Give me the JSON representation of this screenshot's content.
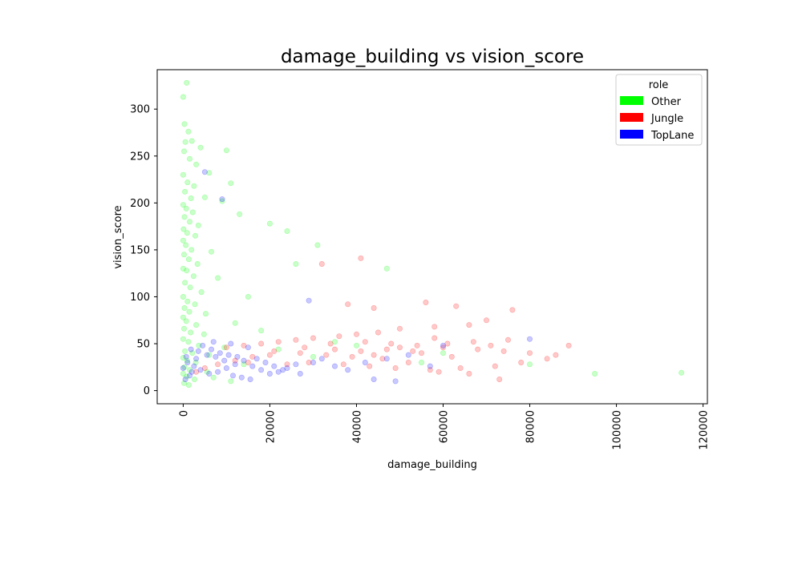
{
  "chart_data": {
    "type": "scatter",
    "title": "damage_building vs vision_score",
    "xlabel": "damage_building",
    "ylabel": "vision_score",
    "xlim": [
      -6000,
      121000
    ],
    "ylim": [
      -14,
      342
    ],
    "x_ticks": [
      0,
      20000,
      40000,
      60000,
      80000,
      100000,
      120000
    ],
    "x_tick_labels": [
      "0",
      "20000",
      "40000",
      "60000",
      "80000",
      "100000",
      "120000"
    ],
    "y_ticks": [
      0,
      50,
      100,
      150,
      200,
      250,
      300
    ],
    "y_tick_labels": [
      "0",
      "50",
      "100",
      "150",
      "200",
      "250",
      "300"
    ],
    "x_tick_rotation": 90,
    "grid": false,
    "legend": {
      "title": "role",
      "placement": "top-right",
      "entries": [
        {
          "label": "Other",
          "color": "#00ff00"
        },
        {
          "label": "Jungle",
          "color": "#ff0000"
        },
        {
          "label": "TopLane",
          "color": "#0000ff"
        }
      ]
    },
    "point_alpha": 0.07,
    "series": [
      {
        "name": "Other",
        "color": "#00ff00",
        "points": [
          [
            0,
            313
          ],
          [
            800,
            328
          ],
          [
            300,
            284
          ],
          [
            1200,
            276
          ],
          [
            500,
            265
          ],
          [
            2000,
            266
          ],
          [
            4000,
            259
          ],
          [
            10000,
            256
          ],
          [
            200,
            255
          ],
          [
            1500,
            247
          ],
          [
            3000,
            241
          ],
          [
            6000,
            232
          ],
          [
            0,
            230
          ],
          [
            1000,
            222
          ],
          [
            2500,
            218
          ],
          [
            11000,
            221
          ],
          [
            400,
            212
          ],
          [
            1800,
            205
          ],
          [
            5000,
            206
          ],
          [
            9000,
            202
          ],
          [
            0,
            198
          ],
          [
            700,
            194
          ],
          [
            2200,
            190
          ],
          [
            13000,
            188
          ],
          [
            300,
            185
          ],
          [
            1500,
            180
          ],
          [
            3500,
            176
          ],
          [
            20000,
            178
          ],
          [
            100,
            172
          ],
          [
            900,
            168
          ],
          [
            2800,
            165
          ],
          [
            24000,
            170
          ],
          [
            0,
            160
          ],
          [
            600,
            155
          ],
          [
            1900,
            150
          ],
          [
            6500,
            148
          ],
          [
            200,
            145
          ],
          [
            1300,
            140
          ],
          [
            3300,
            135
          ],
          [
            31000,
            155
          ],
          [
            0,
            130
          ],
          [
            800,
            128
          ],
          [
            2400,
            122
          ],
          [
            8000,
            120
          ],
          [
            400,
            115
          ],
          [
            1600,
            110
          ],
          [
            4200,
            105
          ],
          [
            26000,
            135
          ],
          [
            0,
            100
          ],
          [
            1000,
            95
          ],
          [
            2700,
            92
          ],
          [
            15000,
            100
          ],
          [
            300,
            88
          ],
          [
            1400,
            84
          ],
          [
            5200,
            82
          ],
          [
            47000,
            130
          ],
          [
            0,
            78
          ],
          [
            700,
            74
          ],
          [
            3000,
            70
          ],
          [
            12000,
            72
          ],
          [
            200,
            66
          ],
          [
            1700,
            62
          ],
          [
            4800,
            60
          ],
          [
            18000,
            64
          ],
          [
            0,
            55
          ],
          [
            1200,
            52
          ],
          [
            3600,
            48
          ],
          [
            9500,
            46
          ],
          [
            400,
            42
          ],
          [
            2100,
            40
          ],
          [
            6000,
            38
          ],
          [
            22000,
            44
          ],
          [
            0,
            35
          ],
          [
            900,
            32
          ],
          [
            2900,
            30
          ],
          [
            14000,
            28
          ],
          [
            300,
            25
          ],
          [
            1500,
            22
          ],
          [
            5500,
            20
          ],
          [
            30000,
            36
          ],
          [
            0,
            18
          ],
          [
            800,
            15
          ],
          [
            2600,
            12
          ],
          [
            11000,
            10
          ],
          [
            200,
            8
          ],
          [
            1300,
            6
          ],
          [
            7000,
            14
          ],
          [
            95000,
            18
          ],
          [
            115000,
            19
          ],
          [
            80000,
            28
          ],
          [
            60000,
            40
          ],
          [
            55000,
            30
          ],
          [
            40000,
            48
          ],
          [
            35000,
            52
          ]
        ]
      },
      {
        "name": "Jungle",
        "color": "#ff0000",
        "points": [
          [
            41000,
            141
          ],
          [
            32000,
            135
          ],
          [
            38000,
            92
          ],
          [
            44000,
            88
          ],
          [
            56000,
            94
          ],
          [
            63000,
            90
          ],
          [
            76000,
            86
          ],
          [
            70000,
            75
          ],
          [
            66000,
            70
          ],
          [
            58000,
            68
          ],
          [
            50000,
            66
          ],
          [
            45000,
            62
          ],
          [
            40000,
            60
          ],
          [
            36000,
            58
          ],
          [
            30000,
            56
          ],
          [
            26000,
            54
          ],
          [
            22000,
            52
          ],
          [
            18000,
            50
          ],
          [
            14000,
            48
          ],
          [
            10000,
            46
          ],
          [
            34000,
            50
          ],
          [
            42000,
            52
          ],
          [
            48000,
            50
          ],
          [
            54000,
            48
          ],
          [
            60000,
            46
          ],
          [
            68000,
            44
          ],
          [
            74000,
            42
          ],
          [
            80000,
            40
          ],
          [
            86000,
            38
          ],
          [
            89000,
            48
          ],
          [
            84000,
            34
          ],
          [
            78000,
            30
          ],
          [
            72000,
            26
          ],
          [
            64000,
            24
          ],
          [
            57000,
            22
          ],
          [
            52000,
            30
          ],
          [
            46000,
            34
          ],
          [
            39000,
            36
          ],
          [
            33000,
            38
          ],
          [
            27000,
            40
          ],
          [
            21000,
            42
          ],
          [
            16000,
            36
          ],
          [
            12000,
            32
          ],
          [
            24000,
            28
          ],
          [
            29000,
            30
          ],
          [
            37000,
            28
          ],
          [
            43000,
            26
          ],
          [
            49000,
            24
          ],
          [
            59000,
            20
          ],
          [
            66000,
            18
          ],
          [
            73000,
            12
          ],
          [
            62000,
            36
          ],
          [
            55000,
            40
          ],
          [
            47000,
            44
          ],
          [
            41000,
            42
          ],
          [
            35000,
            44
          ],
          [
            28000,
            46
          ],
          [
            20000,
            38
          ],
          [
            15000,
            30
          ],
          [
            8000,
            28
          ],
          [
            5000,
            24
          ],
          [
            3000,
            20
          ],
          [
            44000,
            38
          ],
          [
            50000,
            46
          ],
          [
            53000,
            42
          ],
          [
            61000,
            50
          ],
          [
            67000,
            52
          ],
          [
            75000,
            54
          ],
          [
            71000,
            48
          ],
          [
            58000,
            56
          ]
        ]
      },
      {
        "name": "TopLane",
        "color": "#0000ff",
        "points": [
          [
            5000,
            233
          ],
          [
            9000,
            204
          ],
          [
            29000,
            96
          ],
          [
            49000,
            10
          ],
          [
            80000,
            55
          ],
          [
            60000,
            48
          ],
          [
            44000,
            12
          ],
          [
            1000,
            30
          ],
          [
            2500,
            26
          ],
          [
            4000,
            22
          ],
          [
            6000,
            18
          ],
          [
            8000,
            20
          ],
          [
            10000,
            24
          ],
          [
            12000,
            28
          ],
          [
            14000,
            32
          ],
          [
            16000,
            26
          ],
          [
            18000,
            22
          ],
          [
            20000,
            18
          ],
          [
            22000,
            20
          ],
          [
            24000,
            24
          ],
          [
            26000,
            28
          ],
          [
            3000,
            34
          ],
          [
            5500,
            38
          ],
          [
            7500,
            36
          ],
          [
            9500,
            32
          ],
          [
            11500,
            16
          ],
          [
            13500,
            14
          ],
          [
            15500,
            12
          ],
          [
            500,
            12
          ],
          [
            1500,
            16
          ],
          [
            2000,
            20
          ],
          [
            3500,
            42
          ],
          [
            6500,
            44
          ],
          [
            8500,
            40
          ],
          [
            10500,
            38
          ],
          [
            12500,
            36
          ],
          [
            17000,
            34
          ],
          [
            19000,
            30
          ],
          [
            21000,
            26
          ],
          [
            23000,
            22
          ],
          [
            27000,
            18
          ],
          [
            30000,
            30
          ],
          [
            32000,
            34
          ],
          [
            35000,
            26
          ],
          [
            38000,
            22
          ],
          [
            42000,
            30
          ],
          [
            47000,
            34
          ],
          [
            52000,
            38
          ],
          [
            57000,
            26
          ],
          [
            0,
            24
          ],
          [
            700,
            36
          ],
          [
            1800,
            44
          ],
          [
            4500,
            48
          ],
          [
            7000,
            52
          ],
          [
            11000,
            50
          ],
          [
            15000,
            46
          ]
        ]
      }
    ]
  }
}
